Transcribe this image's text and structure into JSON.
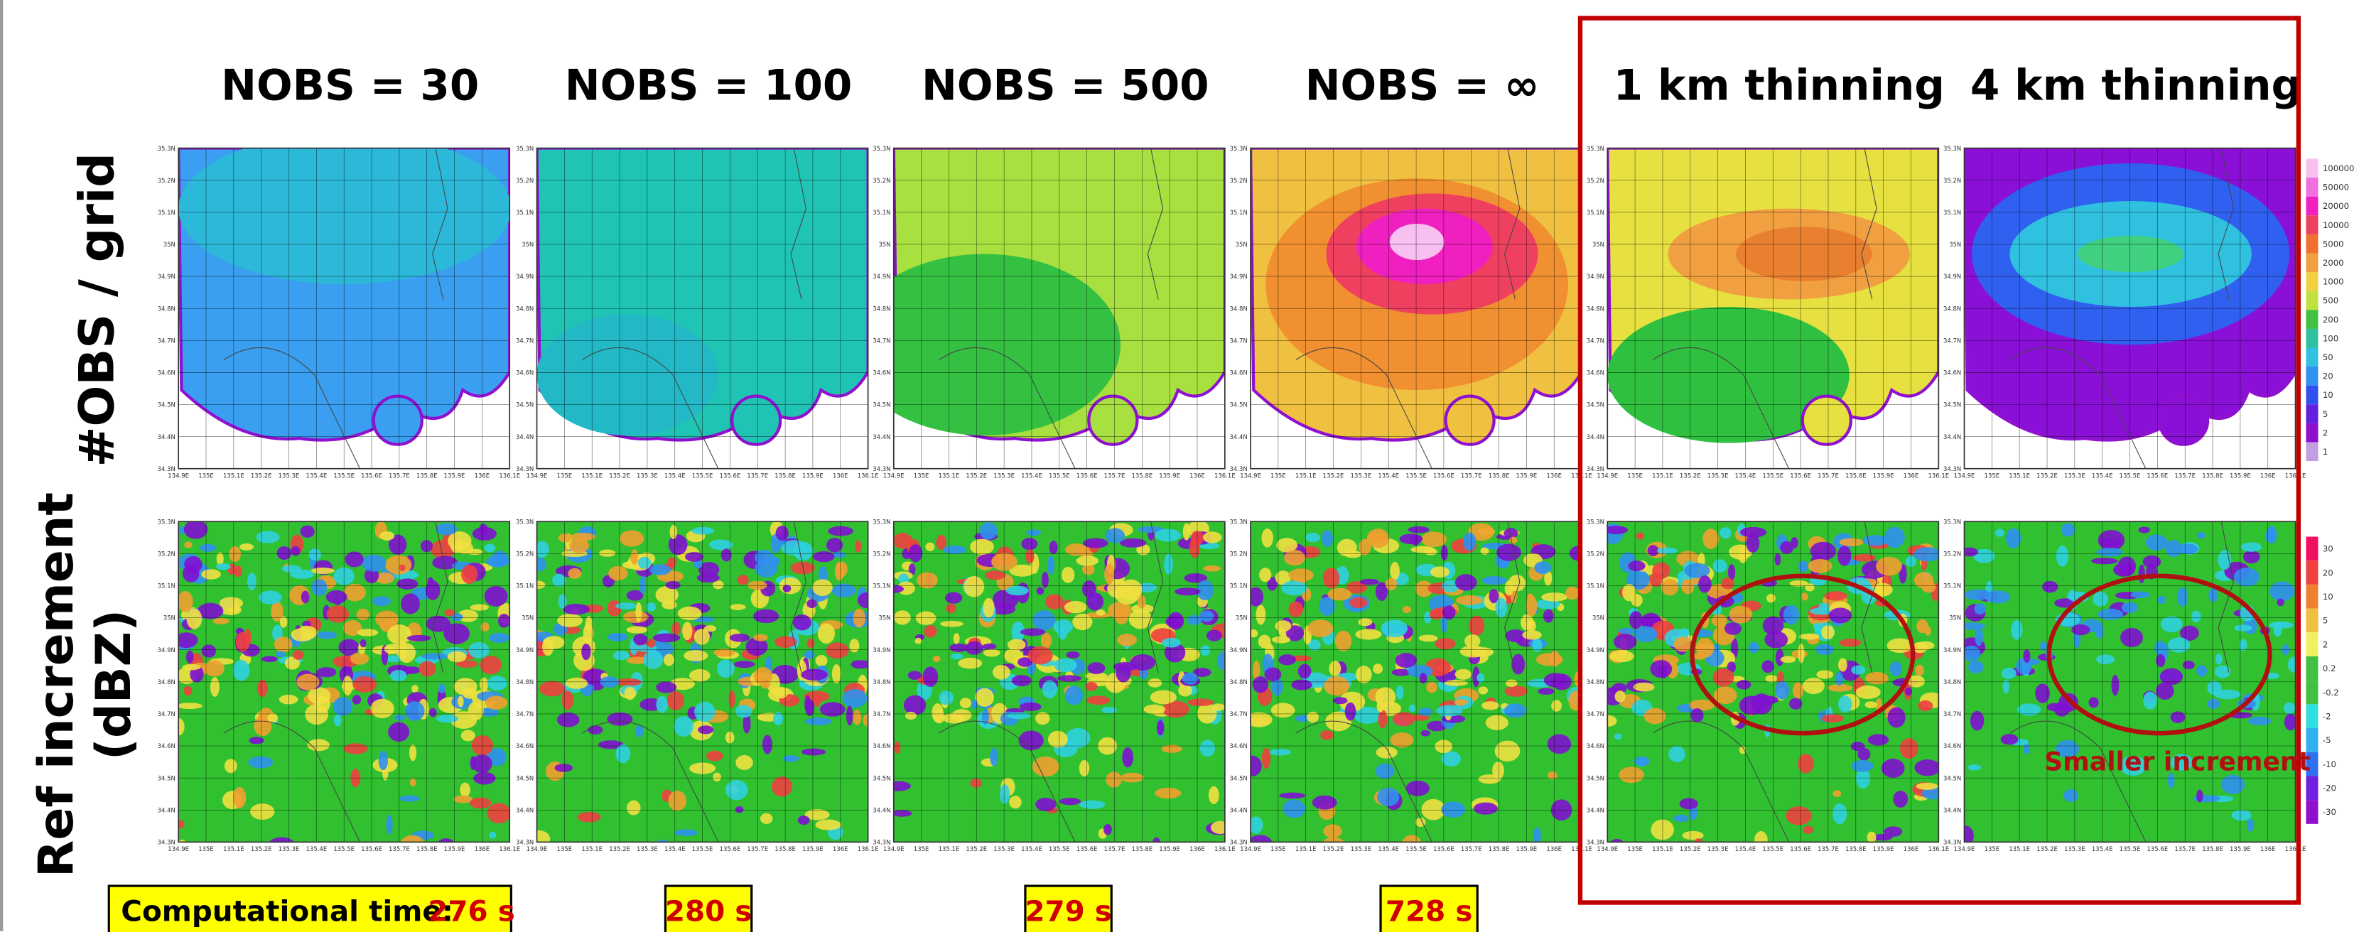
{
  "headers": [
    "NOBS = 30",
    "NOBS = 100",
    "NOBS = 500",
    "NOBS = ∞",
    "1 km thinning",
    "4 km thinning"
  ],
  "row_labels": [
    [
      "#OBS / grid"
    ],
    [
      "Ref increment",
      "(dBZ)"
    ]
  ],
  "lat_ticks": [
    "35.3N",
    "35.2N",
    "35.1N",
    "35N",
    "34.9N",
    "34.8N",
    "34.7N",
    "34.6N",
    "34.5N",
    "34.4N",
    "34.3N"
  ],
  "lon_ticks": [
    "134.9E",
    "135E",
    "135.1E",
    "135.2E",
    "135.3E",
    "135.4E",
    "135.5E",
    "135.6E",
    "135.7E",
    "135.8E",
    "135.9E",
    "136E",
    "136.1E"
  ],
  "colorbar_obs": [
    "100000",
    "50000",
    "20000",
    "10000",
    "5000",
    "2000",
    "1000",
    "500",
    "200",
    "100",
    "50",
    "20",
    "10",
    "5",
    "2",
    "1"
  ],
  "colorbar_inc": [
    "30",
    "20",
    "10",
    "5",
    "2",
    "0.2",
    "-0.2",
    "-2",
    "-5",
    "-10",
    "-20",
    "-30"
  ],
  "annotation": "Smaller increment",
  "time_label": "Computational time:",
  "times": [
    "276 s",
    "280 s",
    "279 s",
    "728 s"
  ]
}
